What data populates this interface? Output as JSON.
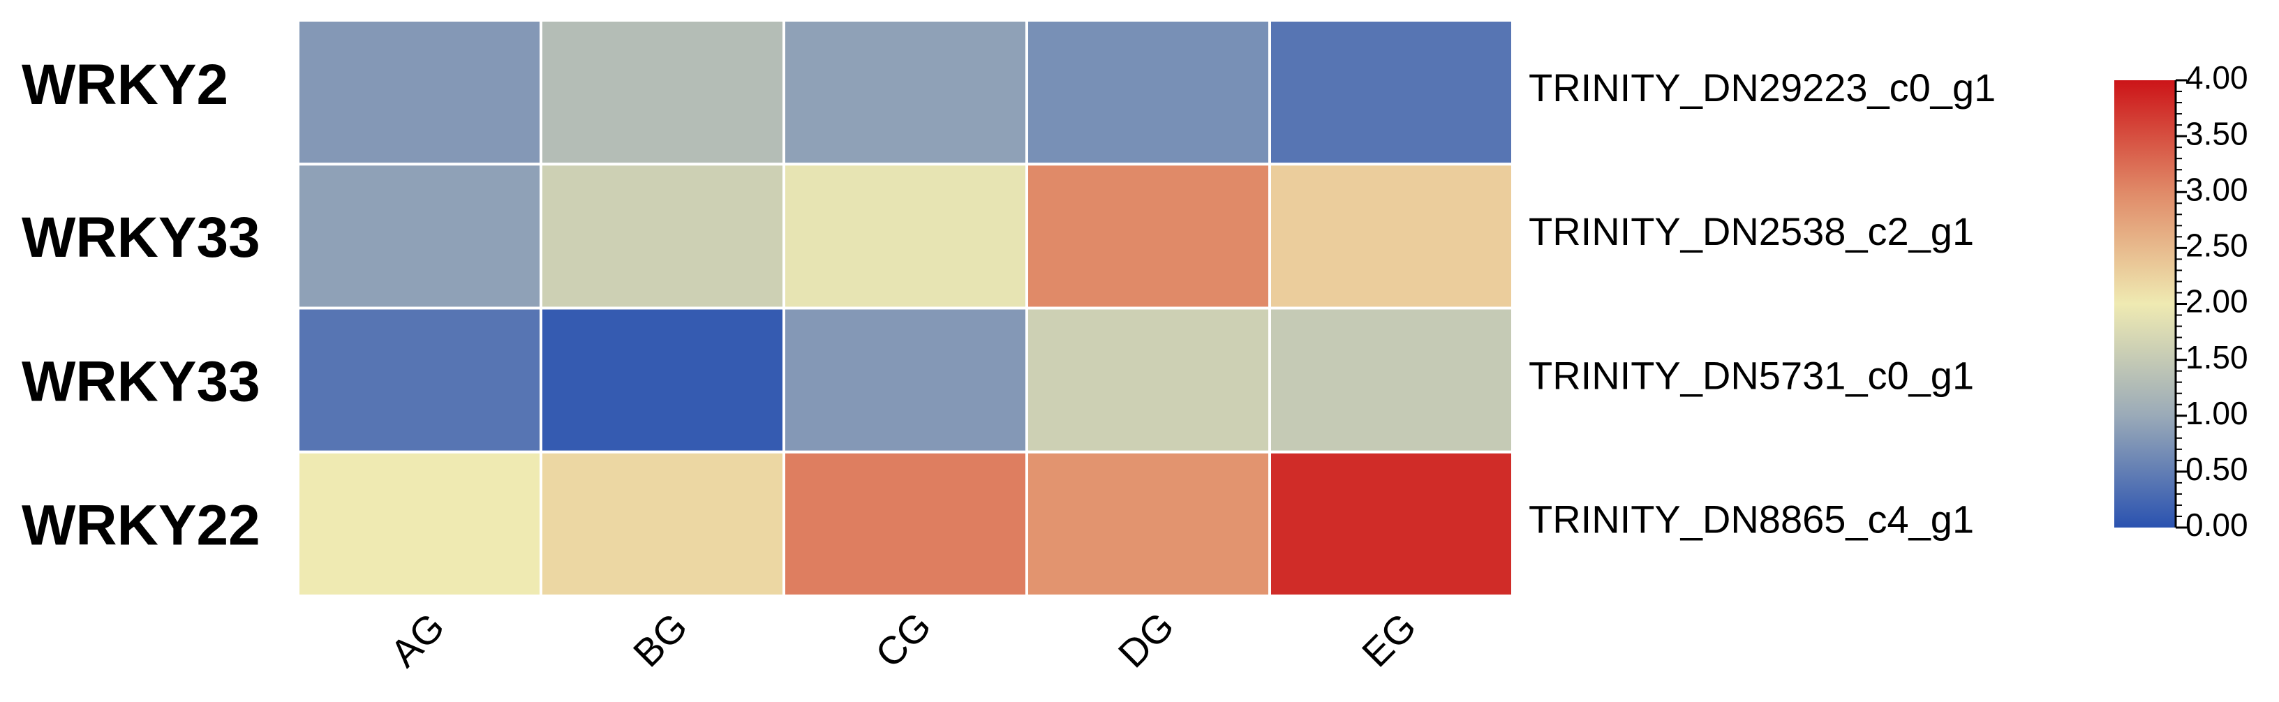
{
  "chart_data": {
    "type": "heatmap",
    "categories": [
      "AG",
      "BG",
      "CG",
      "DG",
      "EG"
    ],
    "row_labels": [
      "WRKY2",
      "WRKY33",
      "WRKY33",
      "WRKY22"
    ],
    "row_ids": [
      "TRINITY_DN29223_c0_g1",
      "TRINITY_DN2538_c2_g1",
      "TRINITY_DN5731_c0_g1",
      "TRINITY_DN8865_c4_g1"
    ],
    "values": [
      [
        0.8,
        1.3,
        0.9,
        0.7,
        0.4
      ],
      [
        0.9,
        1.6,
        1.9,
        3.0,
        2.3
      ],
      [
        0.4,
        0.1,
        0.8,
        1.6,
        1.5
      ],
      [
        2.0,
        2.2,
        3.1,
        2.9,
        3.8
      ]
    ],
    "colorbar_lim": [
      0,
      4
    ],
    "colorbar_ticks": [
      {
        "value": 0,
        "label": "0.00"
      },
      {
        "value": 0.5,
        "label": "0.50"
      },
      {
        "value": 1,
        "label": "1.00"
      },
      {
        "value": 1.5,
        "label": "1.50"
      },
      {
        "value": 2,
        "label": "2.00"
      },
      {
        "value": 2.5,
        "label": "2.50"
      },
      {
        "value": 3,
        "label": "3.00"
      },
      {
        "value": 3.5,
        "label": "3.50"
      },
      {
        "value": 4,
        "label": "4.00"
      }
    ],
    "colormap": [
      "#2a52b0",
      "#9aaab8",
      "#efeab2",
      "#e08a68",
      "#cc1418"
    ]
  }
}
